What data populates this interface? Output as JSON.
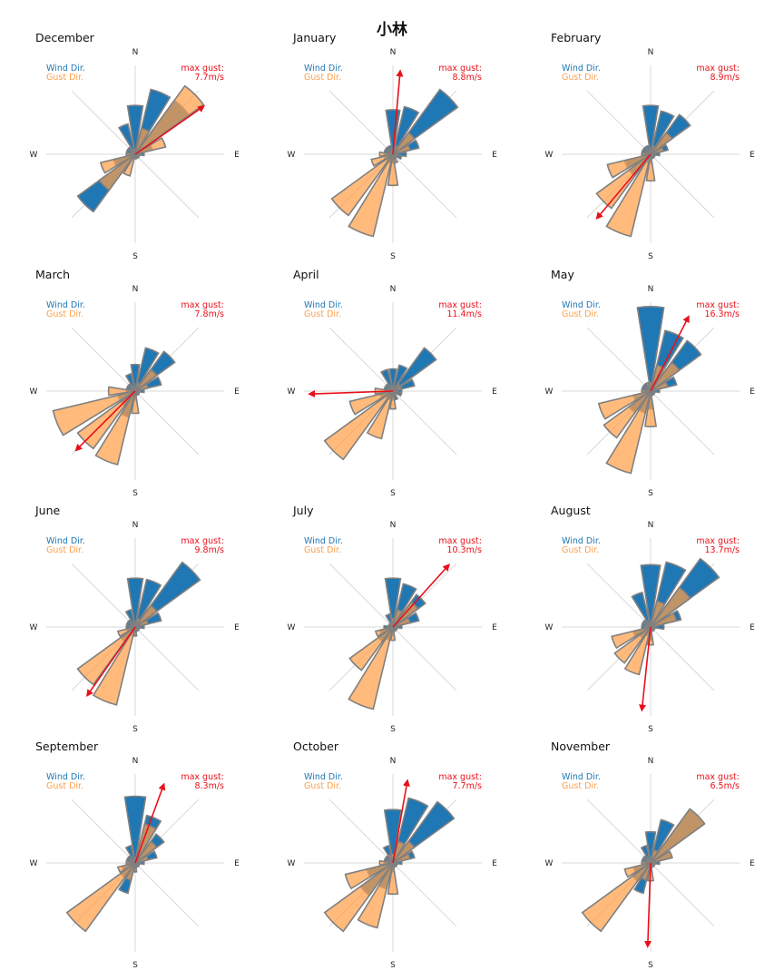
{
  "title": "小林",
  "legend": {
    "wind_label": "Wind Dir.",
    "gust_label": "Gust Dir."
  },
  "gust_label": "max gust:",
  "compass": {
    "n": "N",
    "e": "E",
    "s": "S",
    "w": "W"
  },
  "colors": {
    "wind": "#1f77b4",
    "gust": "#ff9f4a",
    "overlap": "#b8804a",
    "edge": "#808080",
    "arrow": "#e8101a",
    "axis": "#d9d9d9"
  },
  "chart_data": {
    "type": "polar-bar",
    "directions": [
      "N",
      "NNE",
      "NE",
      "ENE",
      "E",
      "ESE",
      "SE",
      "SSE",
      "S",
      "SSW",
      "SW",
      "WSW",
      "W",
      "WNW",
      "NW",
      "NNW"
    ],
    "months": [
      {
        "name": "December",
        "max_gust": "7.7m/s",
        "gust_dir_deg": 55,
        "wind": [
          0.55,
          0.75,
          0.75,
          0.2,
          0.1,
          0.05,
          0.05,
          0.05,
          0.05,
          0.05,
          0.8,
          0.25,
          0.1,
          0.1,
          0.1,
          0.35
        ],
        "gust": [
          0.05,
          0.3,
          0.95,
          0.35,
          0.05,
          0.05,
          0.05,
          0.05,
          0.05,
          0.25,
          0.5,
          0.4,
          0.1,
          0.05,
          0.05,
          0.05
        ]
      },
      {
        "name": "January",
        "max_gust": "8.8m/s",
        "gust_dir_deg": 5,
        "wind": [
          0.5,
          0.55,
          0.9,
          0.3,
          0.15,
          0.1,
          0.05,
          0.05,
          0.1,
          0.1,
          0.1,
          0.1,
          0.1,
          0.1,
          0.1,
          0.1
        ],
        "gust": [
          0.05,
          0.1,
          0.3,
          0.2,
          0.05,
          0.05,
          0.05,
          0.1,
          0.35,
          0.95,
          0.85,
          0.25,
          0.15,
          0.05,
          0.05,
          0.05
        ]
      },
      {
        "name": "February",
        "max_gust": "8.9m/s",
        "gust_dir_deg": 220,
        "wind": [
          0.55,
          0.5,
          0.55,
          0.2,
          0.1,
          0.05,
          0.05,
          0.05,
          0.1,
          0.1,
          0.3,
          0.3,
          0.1,
          0.1,
          0.1,
          0.1
        ],
        "gust": [
          0.05,
          0.1,
          0.3,
          0.15,
          0.05,
          0.05,
          0.05,
          0.05,
          0.3,
          0.95,
          0.75,
          0.5,
          0.1,
          0.05,
          0.05,
          0.05
        ]
      },
      {
        "name": "March",
        "max_gust": "7.8m/s",
        "gust_dir_deg": 225,
        "wind": [
          0.3,
          0.5,
          0.55,
          0.3,
          0.1,
          0.05,
          0.05,
          0.05,
          0.1,
          0.3,
          0.2,
          0.2,
          0.1,
          0.1,
          0.1,
          0.2
        ],
        "gust": [
          0.05,
          0.1,
          0.3,
          0.15,
          0.05,
          0.05,
          0.05,
          0.05,
          0.25,
          0.85,
          0.8,
          0.95,
          0.3,
          0.05,
          0.05,
          0.05
        ]
      },
      {
        "name": "April",
        "max_gust": "11.4m/s",
        "gust_dir_deg": 268,
        "wind": [
          0.25,
          0.3,
          0.6,
          0.25,
          0.1,
          0.1,
          0.05,
          0.1,
          0.1,
          0.1,
          0.1,
          0.15,
          0.1,
          0.1,
          0.1,
          0.25
        ],
        "gust": [
          0.05,
          0.05,
          0.1,
          0.1,
          0.05,
          0.05,
          0.05,
          0.05,
          0.2,
          0.55,
          0.95,
          0.5,
          0.2,
          0.05,
          0.05,
          0.05
        ]
      },
      {
        "name": "May",
        "max_gust": "16.3m/s",
        "gust_dir_deg": 27,
        "wind": [
          0.95,
          0.7,
          0.7,
          0.3,
          0.1,
          0.05,
          0.05,
          0.05,
          0.2,
          0.25,
          0.3,
          0.2,
          0.1,
          0.1,
          0.1,
          0.1
        ],
        "gust": [
          0.1,
          0.3,
          0.4,
          0.2,
          0.05,
          0.05,
          0.05,
          0.05,
          0.4,
          0.95,
          0.65,
          0.6,
          0.1,
          0.05,
          0.05,
          0.1
        ]
      },
      {
        "name": "June",
        "max_gust": "9.8m/s",
        "gust_dir_deg": 215,
        "wind": [
          0.55,
          0.55,
          0.9,
          0.3,
          0.1,
          0.05,
          0.05,
          0.05,
          0.1,
          0.1,
          0.2,
          0.1,
          0.1,
          0.1,
          0.1,
          0.2
        ],
        "gust": [
          0.05,
          0.1,
          0.3,
          0.15,
          0.05,
          0.05,
          0.05,
          0.05,
          0.1,
          0.9,
          0.8,
          0.2,
          0.05,
          0.05,
          0.05,
          0.05
        ]
      },
      {
        "name": "July",
        "max_gust": "10.3m/s",
        "gust_dir_deg": 42,
        "wind": [
          0.55,
          0.5,
          0.45,
          0.3,
          0.1,
          0.05,
          0.05,
          0.05,
          0.1,
          0.15,
          0.2,
          0.15,
          0.1,
          0.05,
          0.05,
          0.15
        ],
        "gust": [
          0.1,
          0.2,
          0.35,
          0.2,
          0.05,
          0.05,
          0.05,
          0.05,
          0.15,
          0.95,
          0.6,
          0.2,
          0.05,
          0.05,
          0.05,
          0.05
        ]
      },
      {
        "name": "August",
        "max_gust": "13.7m/s",
        "gust_dir_deg": 186,
        "wind": [
          0.7,
          0.75,
          0.95,
          0.35,
          0.15,
          0.05,
          0.05,
          0.05,
          0.15,
          0.1,
          0.15,
          0.2,
          0.1,
          0.1,
          0.1,
          0.4
        ],
        "gust": [
          0.05,
          0.3,
          0.55,
          0.3,
          0.05,
          0.05,
          0.05,
          0.05,
          0.2,
          0.55,
          0.5,
          0.45,
          0.05,
          0.05,
          0.05,
          0.05
        ]
      },
      {
        "name": "September",
        "max_gust": "8.3m/s",
        "gust_dir_deg": 20,
        "wind": [
          0.75,
          0.55,
          0.4,
          0.25,
          0.1,
          0.05,
          0.05,
          0.05,
          0.1,
          0.35,
          0.2,
          0.15,
          0.1,
          0.1,
          0.1,
          0.2
        ],
        "gust": [
          0.05,
          0.45,
          0.3,
          0.15,
          0.05,
          0.05,
          0.05,
          0.05,
          0.1,
          0.2,
          0.95,
          0.2,
          0.1,
          0.05,
          0.05,
          0.05
        ]
      },
      {
        "name": "October",
        "max_gust": "7.7m/s",
        "gust_dir_deg": 10,
        "wind": [
          0.6,
          0.75,
          0.85,
          0.25,
          0.1,
          0.05,
          0.05,
          0.05,
          0.1,
          0.3,
          0.45,
          0.3,
          0.1,
          0.1,
          0.1,
          0.2
        ],
        "gust": [
          0.1,
          0.25,
          0.3,
          0.2,
          0.05,
          0.05,
          0.05,
          0.05,
          0.35,
          0.75,
          0.95,
          0.55,
          0.15,
          0.05,
          0.05,
          0.1
        ]
      },
      {
        "name": "November",
        "max_gust": "6.5m/s",
        "gust_dir_deg": 182,
        "wind": [
          0.35,
          0.5,
          0.75,
          0.25,
          0.1,
          0.05,
          0.05,
          0.05,
          0.1,
          0.35,
          0.25,
          0.2,
          0.1,
          0.1,
          0.1,
          0.2
        ],
        "gust": [
          0.05,
          0.15,
          0.75,
          0.25,
          0.05,
          0.05,
          0.05,
          0.05,
          0.2,
          0.2,
          0.95,
          0.3,
          0.1,
          0.05,
          0.05,
          0.05
        ]
      }
    ]
  }
}
